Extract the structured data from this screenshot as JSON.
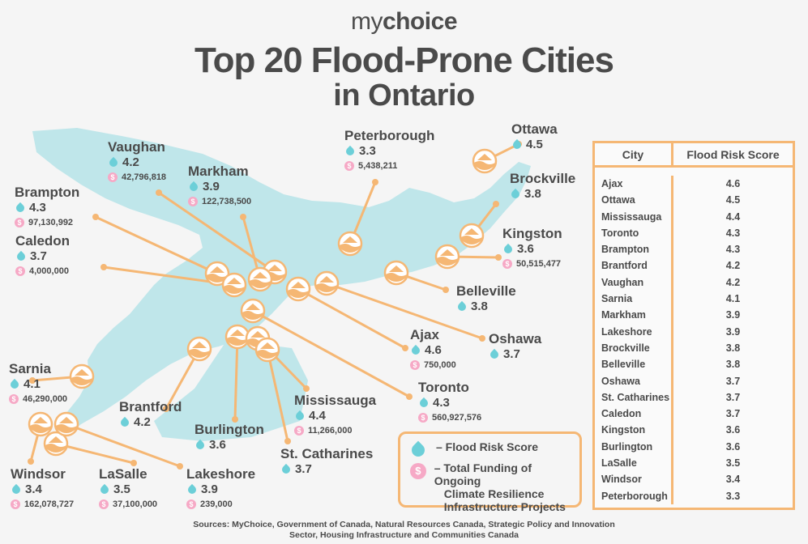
{
  "brand": {
    "my": "my",
    "choice": "choice"
  },
  "title": {
    "line1": "Top 20 Flood-Prone Cities",
    "line2": "in Ontario"
  },
  "colors": {
    "map": "#bfe6ea",
    "accent": "#f5b774",
    "drop": "#6ccfd8",
    "coin": "#f6a9c6",
    "text": "#4a4a4a"
  },
  "icons": {
    "score": "water-drop-icon",
    "funding": "dollar-coin-icon",
    "marker": "flooded-house-icon"
  },
  "coin_symbol": "$",
  "cities": [
    {
      "name": "Vaughan",
      "score": "4.2",
      "funding": "42,796,818"
    },
    {
      "name": "Markham",
      "score": "3.9",
      "funding": "122,738,500"
    },
    {
      "name": "Brampton",
      "score": "4.3",
      "funding": "97,130,992"
    },
    {
      "name": "Caledon",
      "score": "3.7",
      "funding": "4,000,000"
    },
    {
      "name": "Peterborough",
      "score": "3.3",
      "funding": "5,438,211"
    },
    {
      "name": "Ottawa",
      "score": "4.5",
      "funding": ""
    },
    {
      "name": "Brockville",
      "score": "3.8",
      "funding": ""
    },
    {
      "name": "Kingston",
      "score": "3.6",
      "funding": "50,515,477"
    },
    {
      "name": "Belleville",
      "score": "3.8",
      "funding": ""
    },
    {
      "name": "Oshawa",
      "score": "3.7",
      "funding": ""
    },
    {
      "name": "Ajax",
      "score": "4.6",
      "funding": "750,000"
    },
    {
      "name": "Toronto",
      "score": "4.3",
      "funding": "560,927,576"
    },
    {
      "name": "Sarnia",
      "score": "4.1",
      "funding": "46,290,000"
    },
    {
      "name": "Brantford",
      "score": "4.2",
      "funding": ""
    },
    {
      "name": "Burlington",
      "score": "3.6",
      "funding": ""
    },
    {
      "name": "Mississauga",
      "score": "4.4",
      "funding": "11,266,000"
    },
    {
      "name": "St. Catharines",
      "score": "3.7",
      "funding": ""
    },
    {
      "name": "Windsor",
      "score": "3.4",
      "funding": "162,078,727"
    },
    {
      "name": "LaSalle",
      "score": "3.5",
      "funding": "37,100,000"
    },
    {
      "name": "Lakeshore",
      "score": "3.9",
      "funding": "239,000"
    }
  ],
  "legend": {
    "score_label": "– Flood Risk Score",
    "funding_label_1": "– Total Funding of Ongoing",
    "funding_label_2": "Climate Resilience",
    "funding_label_3": "Infrastructure Projects"
  },
  "table": {
    "headers": {
      "city": "City",
      "score": "Flood Risk Score"
    },
    "rows": [
      {
        "city": "Ajax",
        "score": "4.6"
      },
      {
        "city": "Ottawa",
        "score": "4.5"
      },
      {
        "city": "Mississauga",
        "score": "4.4"
      },
      {
        "city": "Toronto",
        "score": "4.3"
      },
      {
        "city": "Brampton",
        "score": "4.3"
      },
      {
        "city": "Brantford",
        "score": "4.2"
      },
      {
        "city": "Vaughan",
        "score": "4.2"
      },
      {
        "city": "Sarnia",
        "score": "4.1"
      },
      {
        "city": "Markham",
        "score": "3.9"
      },
      {
        "city": "Lakeshore",
        "score": "3.9"
      },
      {
        "city": "Brockville",
        "score": "3.8"
      },
      {
        "city": "Belleville",
        "score": "3.8"
      },
      {
        "city": "Oshawa",
        "score": "3.7"
      },
      {
        "city": "St. Catharines",
        "score": "3.7"
      },
      {
        "city": "Caledon",
        "score": "3.7"
      },
      {
        "city": "Kingston",
        "score": "3.6"
      },
      {
        "city": "Burlington",
        "score": "3.6"
      },
      {
        "city": "LaSalle",
        "score": "3.5"
      },
      {
        "city": "Windsor",
        "score": "3.4"
      },
      {
        "city": "Peterborough",
        "score": "3.3"
      }
    ]
  },
  "sources": {
    "line1": "Sources: MyChoice, Government of Canada, Natural Resources Canada, Strategic Policy and Innovation",
    "line2": "Sector, Housing Infrastructure and Communities Canada"
  }
}
